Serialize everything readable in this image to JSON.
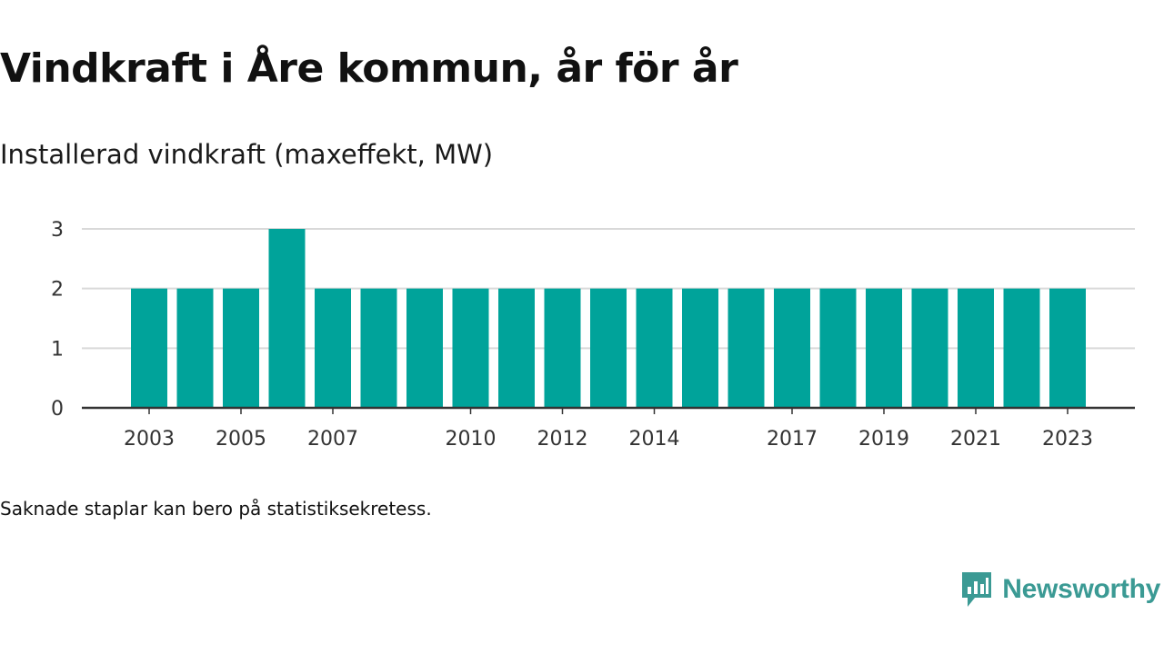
{
  "title": "Vindkraft i Åre kommun, år för år",
  "subtitle": "Installerad vindkraft (maxeffekt, MW)",
  "footnote": "Saknade staplar kan bero på statistiksekretess.",
  "brand": {
    "name": "Newsworthy",
    "color": "#3b9a94",
    "icon": "newsworthy-logo-icon"
  },
  "chart_data": {
    "type": "bar",
    "title": "Vindkraft i Åre kommun, år för år",
    "ylabel": "Installerad vindkraft (maxeffekt, MW)",
    "xlabel": "",
    "bar_color": "#00a39a",
    "categories": [
      "2003",
      "2004",
      "2005",
      "2006",
      "2007",
      "2008",
      "2009",
      "2010",
      "2011",
      "2012",
      "2013",
      "2014",
      "2015",
      "2016",
      "2017",
      "2018",
      "2019",
      "2020",
      "2021",
      "2022",
      "2023"
    ],
    "values": [
      2,
      2,
      2,
      3,
      2,
      2,
      2,
      2,
      2,
      2,
      2,
      2,
      2,
      2,
      2,
      2,
      2,
      2,
      2,
      2,
      2
    ],
    "ylim": [
      0,
      3
    ],
    "yticks": [
      0,
      1,
      2,
      3
    ],
    "xtick_labels": [
      "2003",
      "2005",
      "2007",
      "2010",
      "2012",
      "2014",
      "2017",
      "2019",
      "2021",
      "2023"
    ],
    "grid": true
  }
}
